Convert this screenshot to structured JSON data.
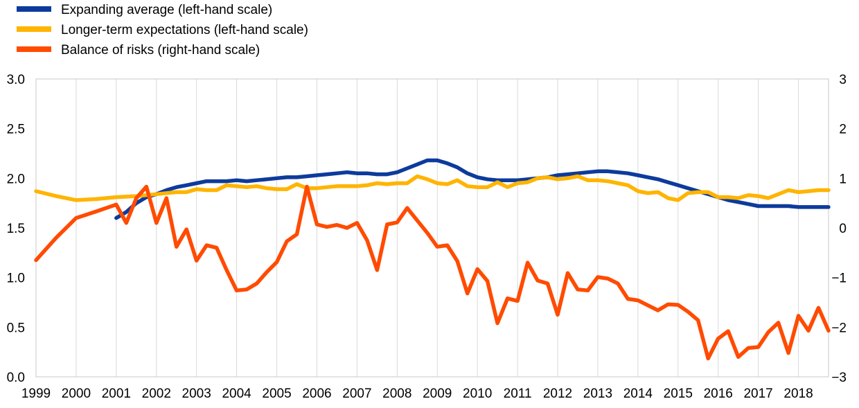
{
  "chart_data": {
    "type": "line",
    "legend_position": "top-left",
    "grid": "vertical",
    "x_axis": {
      "range": [
        1999,
        2018.75
      ],
      "tick_labels": [
        "1999",
        "2000",
        "2001",
        "2002",
        "2003",
        "2004",
        "2005",
        "2006",
        "2007",
        "2008",
        "2009",
        "2010",
        "2011",
        "2012",
        "2013",
        "2014",
        "2015",
        "2016",
        "2017",
        "2018"
      ]
    },
    "y_left": {
      "range": [
        0,
        3
      ],
      "tick_labels": [
        "0.0",
        "0.5",
        "1.0",
        "1.5",
        "2.0",
        "2.5",
        "3.0"
      ]
    },
    "y_right": {
      "range": [
        -3,
        3
      ],
      "tick_labels": [
        "-3",
        "-2",
        "-1",
        "0",
        "1",
        "2",
        "3"
      ]
    },
    "series": [
      {
        "name": "Expanding average (left-hand scale)",
        "axis": "left",
        "color": "#0d3b9c",
        "points": [
          [
            2001.0,
            1.6
          ],
          [
            2001.25,
            1.66
          ],
          [
            2001.5,
            1.75
          ],
          [
            2001.75,
            1.81
          ],
          [
            2002.0,
            1.84
          ],
          [
            2002.25,
            1.88
          ],
          [
            2002.5,
            1.91
          ],
          [
            2002.75,
            1.93
          ],
          [
            2003.0,
            1.95
          ],
          [
            2003.25,
            1.97
          ],
          [
            2003.5,
            1.97
          ],
          [
            2003.75,
            1.97
          ],
          [
            2004.0,
            1.98
          ],
          [
            2004.25,
            1.97
          ],
          [
            2004.5,
            1.98
          ],
          [
            2004.75,
            1.99
          ],
          [
            2005.0,
            2.0
          ],
          [
            2005.25,
            2.01
          ],
          [
            2005.5,
            2.01
          ],
          [
            2005.75,
            2.02
          ],
          [
            2006.0,
            2.03
          ],
          [
            2006.25,
            2.04
          ],
          [
            2006.5,
            2.05
          ],
          [
            2006.75,
            2.06
          ],
          [
            2007.0,
            2.05
          ],
          [
            2007.25,
            2.05
          ],
          [
            2007.5,
            2.04
          ],
          [
            2007.75,
            2.04
          ],
          [
            2008.0,
            2.06
          ],
          [
            2008.25,
            2.1
          ],
          [
            2008.5,
            2.14
          ],
          [
            2008.75,
            2.18
          ],
          [
            2009.0,
            2.18
          ],
          [
            2009.25,
            2.15
          ],
          [
            2009.5,
            2.11
          ],
          [
            2009.75,
            2.05
          ],
          [
            2010.0,
            2.01
          ],
          [
            2010.25,
            1.99
          ],
          [
            2010.5,
            1.98
          ],
          [
            2010.75,
            1.98
          ],
          [
            2011.0,
            1.98
          ],
          [
            2011.25,
            1.99
          ],
          [
            2011.5,
            2.0
          ],
          [
            2011.75,
            2.01
          ],
          [
            2012.0,
            2.03
          ],
          [
            2012.25,
            2.04
          ],
          [
            2012.5,
            2.05
          ],
          [
            2012.75,
            2.06
          ],
          [
            2013.0,
            2.07
          ],
          [
            2013.25,
            2.07
          ],
          [
            2013.5,
            2.06
          ],
          [
            2013.75,
            2.05
          ],
          [
            2014.0,
            2.03
          ],
          [
            2014.25,
            2.01
          ],
          [
            2014.5,
            1.99
          ],
          [
            2014.75,
            1.96
          ],
          [
            2015.0,
            1.93
          ],
          [
            2015.25,
            1.9
          ],
          [
            2015.5,
            1.87
          ],
          [
            2015.75,
            1.84
          ],
          [
            2016.0,
            1.81
          ],
          [
            2016.25,
            1.78
          ],
          [
            2016.5,
            1.76
          ],
          [
            2016.75,
            1.74
          ],
          [
            2017.0,
            1.72
          ],
          [
            2017.25,
            1.72
          ],
          [
            2017.5,
            1.72
          ],
          [
            2017.75,
            1.72
          ],
          [
            2018.0,
            1.71
          ],
          [
            2018.25,
            1.71
          ],
          [
            2018.5,
            1.71
          ],
          [
            2018.75,
            1.71
          ]
        ]
      },
      {
        "name": "Longer-term expectations (left-hand scale)",
        "axis": "left",
        "color": "#ffb400",
        "points": [
          [
            1999.0,
            1.87
          ],
          [
            1999.5,
            1.82
          ],
          [
            2000.0,
            1.78
          ],
          [
            2000.5,
            1.79
          ],
          [
            2001.0,
            1.81
          ],
          [
            2001.5,
            1.82
          ],
          [
            2002.0,
            1.84
          ],
          [
            2002.25,
            1.85
          ],
          [
            2002.5,
            1.86
          ],
          [
            2002.75,
            1.86
          ],
          [
            2003.0,
            1.89
          ],
          [
            2003.25,
            1.88
          ],
          [
            2003.5,
            1.88
          ],
          [
            2003.75,
            1.93
          ],
          [
            2004.0,
            1.92
          ],
          [
            2004.25,
            1.91
          ],
          [
            2004.5,
            1.92
          ],
          [
            2004.75,
            1.9
          ],
          [
            2005.0,
            1.89
          ],
          [
            2005.25,
            1.89
          ],
          [
            2005.5,
            1.94
          ],
          [
            2005.75,
            1.9
          ],
          [
            2006.0,
            1.9
          ],
          [
            2006.25,
            1.91
          ],
          [
            2006.5,
            1.92
          ],
          [
            2006.75,
            1.92
          ],
          [
            2007.0,
            1.92
          ],
          [
            2007.25,
            1.93
          ],
          [
            2007.5,
            1.95
          ],
          [
            2007.75,
            1.94
          ],
          [
            2008.0,
            1.95
          ],
          [
            2008.25,
            1.95
          ],
          [
            2008.5,
            2.02
          ],
          [
            2008.75,
            1.99
          ],
          [
            2009.0,
            1.95
          ],
          [
            2009.25,
            1.94
          ],
          [
            2009.5,
            1.98
          ],
          [
            2009.75,
            1.92
          ],
          [
            2010.0,
            1.91
          ],
          [
            2010.25,
            1.91
          ],
          [
            2010.5,
            1.96
          ],
          [
            2010.75,
            1.91
          ],
          [
            2011.0,
            1.95
          ],
          [
            2011.25,
            1.96
          ],
          [
            2011.5,
            2.0
          ],
          [
            2011.75,
            2.01
          ],
          [
            2012.0,
            1.99
          ],
          [
            2012.25,
            2.0
          ],
          [
            2012.5,
            2.02
          ],
          [
            2012.75,
            1.98
          ],
          [
            2013.0,
            1.98
          ],
          [
            2013.25,
            1.97
          ],
          [
            2013.5,
            1.95
          ],
          [
            2013.75,
            1.93
          ],
          [
            2014.0,
            1.87
          ],
          [
            2014.25,
            1.85
          ],
          [
            2014.5,
            1.86
          ],
          [
            2014.75,
            1.8
          ],
          [
            2015.0,
            1.78
          ],
          [
            2015.25,
            1.85
          ],
          [
            2015.5,
            1.86
          ],
          [
            2015.75,
            1.86
          ],
          [
            2016.0,
            1.81
          ],
          [
            2016.25,
            1.81
          ],
          [
            2016.5,
            1.8
          ],
          [
            2016.75,
            1.83
          ],
          [
            2017.0,
            1.82
          ],
          [
            2017.25,
            1.8
          ],
          [
            2017.5,
            1.84
          ],
          [
            2017.75,
            1.88
          ],
          [
            2018.0,
            1.86
          ],
          [
            2018.25,
            1.87
          ],
          [
            2018.5,
            1.88
          ],
          [
            2018.75,
            1.88
          ]
        ]
      },
      {
        "name": "Balance of risks (right-hand scale)",
        "axis": "right",
        "color": "#ff4b00",
        "points": [
          [
            1999.0,
            -0.65
          ],
          [
            1999.5,
            -0.2
          ],
          [
            2000.0,
            0.2
          ],
          [
            2000.5,
            0.33
          ],
          [
            2001.0,
            0.47
          ],
          [
            2001.25,
            0.1
          ],
          [
            2001.5,
            0.6
          ],
          [
            2001.75,
            0.83
          ],
          [
            2002.0,
            0.1
          ],
          [
            2002.25,
            0.6
          ],
          [
            2002.5,
            -0.38
          ],
          [
            2002.75,
            -0.03
          ],
          [
            2003.0,
            -0.66
          ],
          [
            2003.25,
            -0.35
          ],
          [
            2003.5,
            -0.4
          ],
          [
            2003.75,
            -0.85
          ],
          [
            2004.0,
            -1.26
          ],
          [
            2004.25,
            -1.24
          ],
          [
            2004.5,
            -1.12
          ],
          [
            2004.75,
            -0.89
          ],
          [
            2005.0,
            -0.69
          ],
          [
            2005.25,
            -0.27
          ],
          [
            2005.5,
            -0.13
          ],
          [
            2005.75,
            0.83
          ],
          [
            2006.0,
            0.07
          ],
          [
            2006.25,
            0.02
          ],
          [
            2006.5,
            0.06
          ],
          [
            2006.75,
            0.0
          ],
          [
            2007.0,
            0.1
          ],
          [
            2007.25,
            -0.25
          ],
          [
            2007.5,
            -0.85
          ],
          [
            2007.75,
            0.07
          ],
          [
            2008.0,
            0.11
          ],
          [
            2008.25,
            0.4
          ],
          [
            2008.5,
            0.15
          ],
          [
            2008.75,
            -0.1
          ],
          [
            2009.0,
            -0.38
          ],
          [
            2009.25,
            -0.35
          ],
          [
            2009.5,
            -0.67
          ],
          [
            2009.75,
            -1.32
          ],
          [
            2010.0,
            -0.83
          ],
          [
            2010.25,
            -1.07
          ],
          [
            2010.5,
            -1.92
          ],
          [
            2010.75,
            -1.42
          ],
          [
            2011.0,
            -1.47
          ],
          [
            2011.25,
            -0.7
          ],
          [
            2011.5,
            -1.06
          ],
          [
            2011.75,
            -1.12
          ],
          [
            2012.0,
            -1.75
          ],
          [
            2012.25,
            -0.91
          ],
          [
            2012.5,
            -1.24
          ],
          [
            2012.75,
            -1.26
          ],
          [
            2013.0,
            -0.99
          ],
          [
            2013.25,
            -1.02
          ],
          [
            2013.5,
            -1.12
          ],
          [
            2013.75,
            -1.43
          ],
          [
            2014.0,
            -1.46
          ],
          [
            2014.25,
            -1.56
          ],
          [
            2014.5,
            -1.66
          ],
          [
            2014.75,
            -1.54
          ],
          [
            2015.0,
            -1.55
          ],
          [
            2015.25,
            -1.69
          ],
          [
            2015.5,
            -1.86
          ],
          [
            2015.75,
            -2.63
          ],
          [
            2016.0,
            -2.23
          ],
          [
            2016.25,
            -2.08
          ],
          [
            2016.5,
            -2.6
          ],
          [
            2016.75,
            -2.42
          ],
          [
            2017.0,
            -2.4
          ],
          [
            2017.25,
            -2.1
          ],
          [
            2017.5,
            -1.91
          ],
          [
            2017.75,
            -2.52
          ],
          [
            2018.0,
            -1.77
          ],
          [
            2018.25,
            -2.07
          ],
          [
            2018.5,
            -1.61
          ],
          [
            2018.75,
            -2.07
          ]
        ]
      }
    ]
  }
}
